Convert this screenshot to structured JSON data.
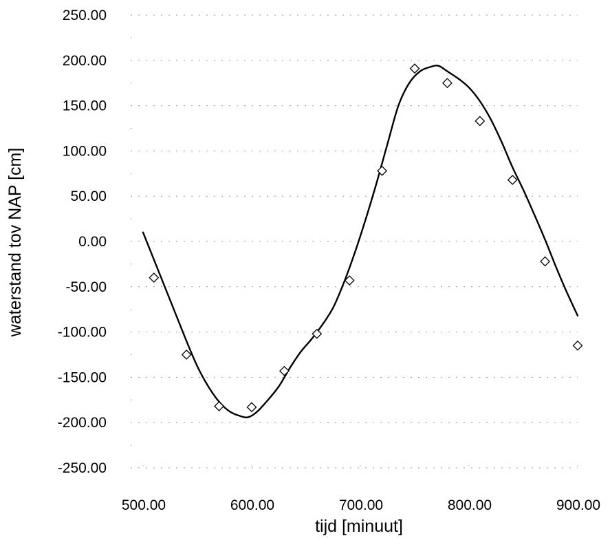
{
  "chart_data": {
    "type": "line",
    "title": "",
    "xlabel": "tijd [minuut]",
    "ylabel": "waterstand tov NAP [cm]",
    "xlim": [
      500,
      900
    ],
    "ylim": [
      -250,
      250
    ],
    "x_ticks": [
      500,
      600,
      700,
      800,
      900
    ],
    "y_ticks": [
      250,
      200,
      150,
      100,
      50,
      0,
      -50,
      -100,
      -150,
      -200,
      -250
    ],
    "x_tick_labels": [
      "500.00",
      "600.00",
      "700.00",
      "800.00",
      "900.00"
    ],
    "y_tick_labels": [
      "250.00",
      "200.00",
      "150.00",
      "100.00",
      "50.00",
      "0.00",
      "-50.00",
      "-100.00",
      "-150.00",
      "-200.00",
      "-250.00"
    ],
    "grid": true,
    "legend": "none",
    "series": [
      {
        "style": "solid-line",
        "color": "#000000",
        "x": [
          500,
          510,
          520,
          530,
          540,
          550,
          560,
          570,
          580,
          590,
          597,
          605,
          615,
          625,
          635,
          645,
          655,
          665,
          675,
          685,
          695,
          705,
          715,
          725,
          735,
          745,
          755,
          765,
          772,
          780,
          790,
          800,
          810,
          820,
          830,
          840,
          850,
          860,
          870,
          880,
          890,
          900
        ],
        "y": [
          10,
          -20,
          -50,
          -80,
          -110,
          -138,
          -160,
          -177,
          -188,
          -193,
          -194,
          -188,
          -175,
          -160,
          -140,
          -122,
          -108,
          -92,
          -73,
          -45,
          -12,
          25,
          65,
          108,
          150,
          175,
          188,
          193,
          194,
          188,
          180,
          170,
          155,
          135,
          110,
          82,
          57,
          30,
          2,
          -28,
          -56,
          -82
        ]
      },
      {
        "style": "open-diamond-markers",
        "color": "#000000",
        "x": [
          510,
          540,
          570,
          600,
          630,
          660,
          690,
          720,
          750,
          780,
          810,
          840,
          870,
          900
        ],
        "y": [
          -40,
          -125,
          -182,
          -183,
          -143,
          -102,
          -43,
          78,
          191,
          175,
          133,
          68,
          -22,
          -115
        ]
      }
    ]
  }
}
